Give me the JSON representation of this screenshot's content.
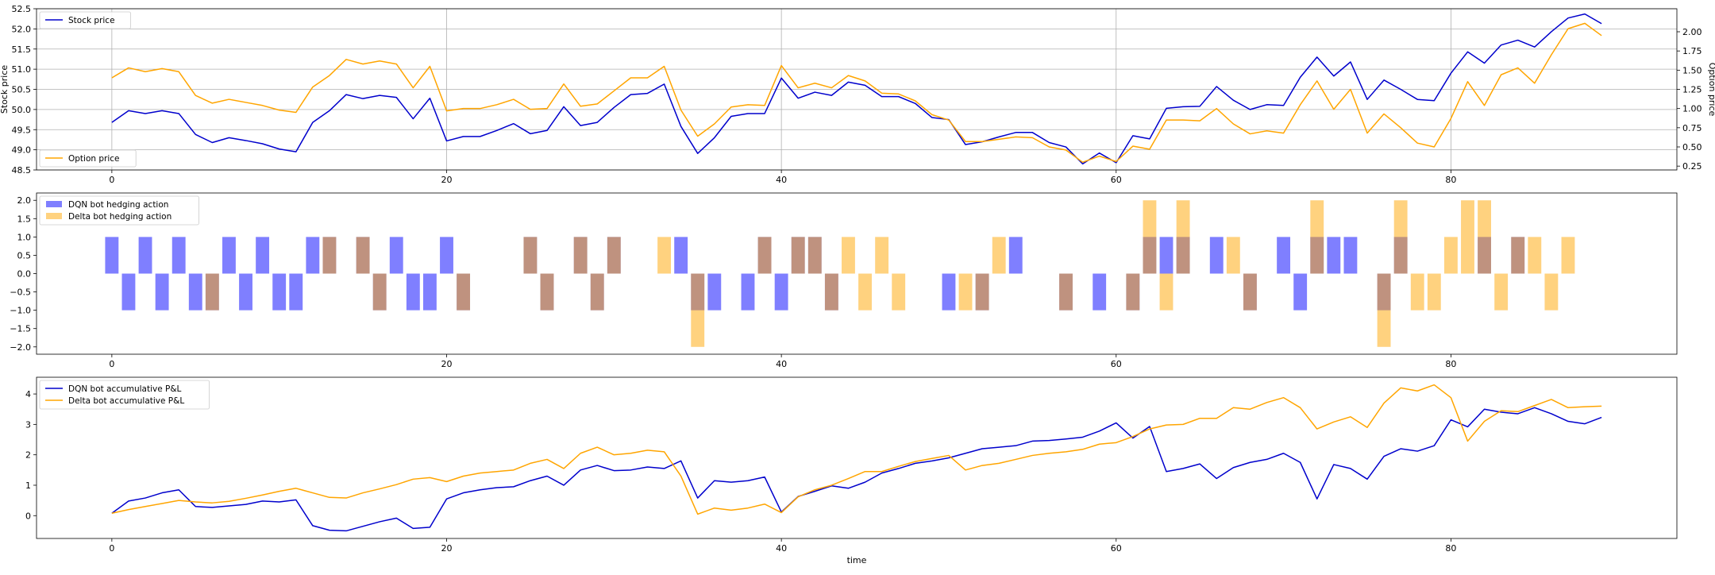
{
  "chart_data": [
    {
      "type": "line",
      "ylabel": "Stock price",
      "y2label": "Option price",
      "xlim": [
        -4.5,
        93.5
      ],
      "ylim": [
        48.5,
        52.5
      ],
      "y2lim": [
        0.2,
        2.3
      ],
      "xticks": [
        0,
        20,
        40,
        60,
        80
      ],
      "yticks": [
        48.5,
        49.0,
        49.5,
        50.0,
        50.5,
        51.0,
        51.5,
        52.0,
        52.5
      ],
      "ytick_labels": [
        "48.5",
        "49.0",
        "49.5",
        "50.0",
        "50.5",
        "51.0",
        "51.5",
        "52.0",
        "52.5"
      ],
      "y2ticks": [
        0.25,
        0.5,
        0.75,
        1.0,
        1.25,
        1.5,
        1.75,
        2.0
      ],
      "y2tick_labels": [
        "0.25",
        "0.50",
        "0.75",
        "1.00",
        "1.25",
        "1.50",
        "1.75",
        "2.00"
      ],
      "grid": true,
      "series": [
        {
          "name": "Stock price",
          "axis": "left",
          "color": "#0000cc",
          "legend": "upper-left",
          "values": [
            49.68,
            49.97,
            49.9,
            49.97,
            49.9,
            49.38,
            49.18,
            49.3,
            49.23,
            49.15,
            49.02,
            48.95,
            49.68,
            49.97,
            50.37,
            50.27,
            50.35,
            50.3,
            49.77,
            50.28,
            49.22,
            49.33,
            49.33,
            49.48,
            49.65,
            49.4,
            49.48,
            50.07,
            49.6,
            49.68,
            50.05,
            50.37,
            50.4,
            50.63,
            49.58,
            48.91,
            49.3,
            49.83,
            49.9,
            49.9,
            50.78,
            50.28,
            50.43,
            50.35,
            50.68,
            50.6,
            50.32,
            50.32,
            50.15,
            49.8,
            49.75,
            49.13,
            49.2,
            49.32,
            49.43,
            49.43,
            49.18,
            49.07,
            48.65,
            48.92,
            48.68,
            49.35,
            49.27,
            50.03,
            50.07,
            50.08,
            50.57,
            50.23,
            50.0,
            50.12,
            50.1,
            50.8,
            51.3,
            50.83,
            51.18,
            50.25,
            50.73,
            50.5,
            50.25,
            50.22,
            50.9,
            51.43,
            51.15,
            51.6,
            51.72,
            51.55,
            51.93,
            52.27,
            52.37,
            52.13
          ]
        },
        {
          "name": "Option price",
          "axis": "right",
          "color": "#ffa500",
          "legend": "lower-left",
          "values": [
            1.4,
            1.53,
            1.48,
            1.52,
            1.48,
            1.17,
            1.07,
            1.12,
            1.08,
            1.04,
            0.98,
            0.95,
            1.28,
            1.43,
            1.64,
            1.58,
            1.62,
            1.58,
            1.27,
            1.55,
            0.97,
            1.0,
            1.0,
            1.05,
            1.12,
            0.99,
            1.0,
            1.32,
            1.03,
            1.06,
            1.23,
            1.4,
            1.4,
            1.55,
            0.98,
            0.64,
            0.8,
            1.02,
            1.05,
            1.04,
            1.56,
            1.27,
            1.33,
            1.27,
            1.43,
            1.36,
            1.2,
            1.19,
            1.1,
            0.92,
            0.85,
            0.57,
            0.57,
            0.6,
            0.63,
            0.62,
            0.5,
            0.46,
            0.3,
            0.38,
            0.31,
            0.51,
            0.47,
            0.85,
            0.85,
            0.84,
            1.0,
            0.8,
            0.67,
            0.71,
            0.68,
            1.05,
            1.36,
            0.99,
            1.25,
            0.68,
            0.93,
            0.75,
            0.55,
            0.5,
            0.87,
            1.35,
            1.04,
            1.44,
            1.53,
            1.33,
            1.7,
            2.04,
            2.11,
            1.95
          ]
        }
      ]
    },
    {
      "type": "bar",
      "xlim": [
        -4.5,
        93.5
      ],
      "ylim": [
        -2.2,
        2.2
      ],
      "xticks": [
        0,
        20,
        40,
        60,
        80
      ],
      "yticks": [
        -2.0,
        -1.5,
        -1.0,
        -0.5,
        0.0,
        0.5,
        1.0,
        1.5,
        2.0
      ],
      "ytick_labels": [
        "−2.0",
        "−1.5",
        "−1.0",
        "−0.5",
        "0.0",
        "0.5",
        "1.0",
        "1.5",
        "2.0"
      ],
      "legend": "upper-left",
      "series": [
        {
          "name": "DQN bot hedging action",
          "color": "#0000ff",
          "opacity": 0.5,
          "values": [
            1,
            -1,
            1,
            -1,
            1,
            -1,
            -1,
            1,
            -1,
            1,
            -1,
            -1,
            1,
            1,
            0,
            1,
            -1,
            1,
            -1,
            -1,
            1,
            -1,
            0,
            0,
            0,
            1,
            -1,
            0,
            1,
            -1,
            1,
            0,
            0,
            0,
            1,
            -1,
            -1,
            0,
            -1,
            1,
            -1,
            1,
            1,
            -1,
            0,
            0,
            0,
            0,
            0,
            0,
            -1,
            0,
            -1,
            0,
            1,
            0,
            0,
            -1,
            0,
            -1,
            0,
            -1,
            1,
            1,
            1,
            0,
            1,
            0,
            -1,
            0,
            1,
            -1,
            1,
            1,
            1,
            0,
            -1,
            1,
            0,
            0,
            0,
            0,
            1,
            0,
            1,
            0,
            0,
            0,
            0,
            0
          ]
        },
        {
          "name": "Delta bot hedging action",
          "color": "#ffa500",
          "opacity": 0.5,
          "values": [
            0,
            0,
            0,
            0,
            0,
            0,
            -1,
            0,
            0,
            0,
            0,
            0,
            0,
            1,
            0,
            1,
            -1,
            0,
            0,
            0,
            0,
            -1,
            0,
            0,
            0,
            1,
            -1,
            0,
            1,
            -1,
            1,
            0,
            0,
            1,
            0,
            -2,
            0,
            0,
            0,
            1,
            0,
            1,
            1,
            -1,
            1,
            -1,
            1,
            -1,
            0,
            0,
            0,
            -1,
            -1,
            1,
            0,
            0,
            0,
            -1,
            0,
            0,
            0,
            -1,
            2,
            -1,
            2,
            0,
            0,
            1,
            -1,
            0,
            0,
            0,
            2,
            0,
            0,
            0,
            -2,
            2,
            -1,
            -1,
            1,
            2,
            2,
            -1,
            1,
            1,
            -1,
            1,
            0,
            0
          ]
        }
      ]
    },
    {
      "type": "line",
      "xlabel": "time",
      "xlim": [
        -4.5,
        93.5
      ],
      "ylim": [
        -0.75,
        4.55
      ],
      "xticks": [
        0,
        20,
        40,
        60,
        80
      ],
      "yticks": [
        0,
        1,
        2,
        3,
        4
      ],
      "legend": "upper-left",
      "series": [
        {
          "name": "DQN bot accumulative P&L",
          "color": "#0000cc",
          "values": [
            0.08,
            0.48,
            0.58,
            0.75,
            0.85,
            0.3,
            0.27,
            0.32,
            0.37,
            0.48,
            0.45,
            0.52,
            -0.33,
            -0.48,
            -0.5,
            -0.35,
            -0.2,
            -0.08,
            -0.42,
            -0.38,
            0.55,
            0.75,
            0.85,
            0.92,
            0.95,
            1.15,
            1.3,
            1.0,
            1.5,
            1.65,
            1.48,
            1.5,
            1.6,
            1.55,
            1.8,
            0.58,
            1.15,
            1.1,
            1.15,
            1.27,
            0.12,
            0.63,
            0.8,
            0.98,
            0.9,
            1.1,
            1.4,
            1.55,
            1.72,
            1.8,
            1.9,
            2.05,
            2.2,
            2.25,
            2.3,
            2.45,
            2.47,
            2.52,
            2.58,
            2.78,
            3.05,
            2.55,
            2.93,
            1.45,
            1.55,
            1.7,
            1.22,
            1.58,
            1.75,
            1.85,
            2.05,
            1.75,
            0.55,
            1.68,
            1.55,
            1.2,
            1.95,
            2.2,
            2.12,
            2.3,
            3.15,
            2.92,
            3.5,
            3.4,
            3.35,
            3.55,
            3.35,
            3.1,
            3.02,
            3.23
          ]
        },
        {
          "name": "Delta bot accumulative P&L",
          "color": "#ffa500",
          "values": [
            0.08,
            0.2,
            0.3,
            0.4,
            0.5,
            0.45,
            0.42,
            0.47,
            0.57,
            0.68,
            0.8,
            0.9,
            0.75,
            0.6,
            0.58,
            0.75,
            0.88,
            1.02,
            1.2,
            1.25,
            1.12,
            1.3,
            1.4,
            1.45,
            1.5,
            1.72,
            1.85,
            1.55,
            2.05,
            2.25,
            2.0,
            2.05,
            2.15,
            2.1,
            1.3,
            0.05,
            0.25,
            0.18,
            0.25,
            0.38,
            0.1,
            0.62,
            0.85,
            1.0,
            1.22,
            1.45,
            1.45,
            1.62,
            1.78,
            1.88,
            1.98,
            1.5,
            1.65,
            1.72,
            1.85,
            1.98,
            2.05,
            2.1,
            2.18,
            2.35,
            2.4,
            2.6,
            2.85,
            2.98,
            3.0,
            3.2,
            3.2,
            3.55,
            3.5,
            3.72,
            3.88,
            3.55,
            2.85,
            3.08,
            3.25,
            2.9,
            3.7,
            4.2,
            4.1,
            4.3,
            3.88,
            2.45,
            3.1,
            3.45,
            3.42,
            3.62,
            3.82,
            3.55,
            3.58,
            3.6
          ]
        }
      ]
    }
  ]
}
